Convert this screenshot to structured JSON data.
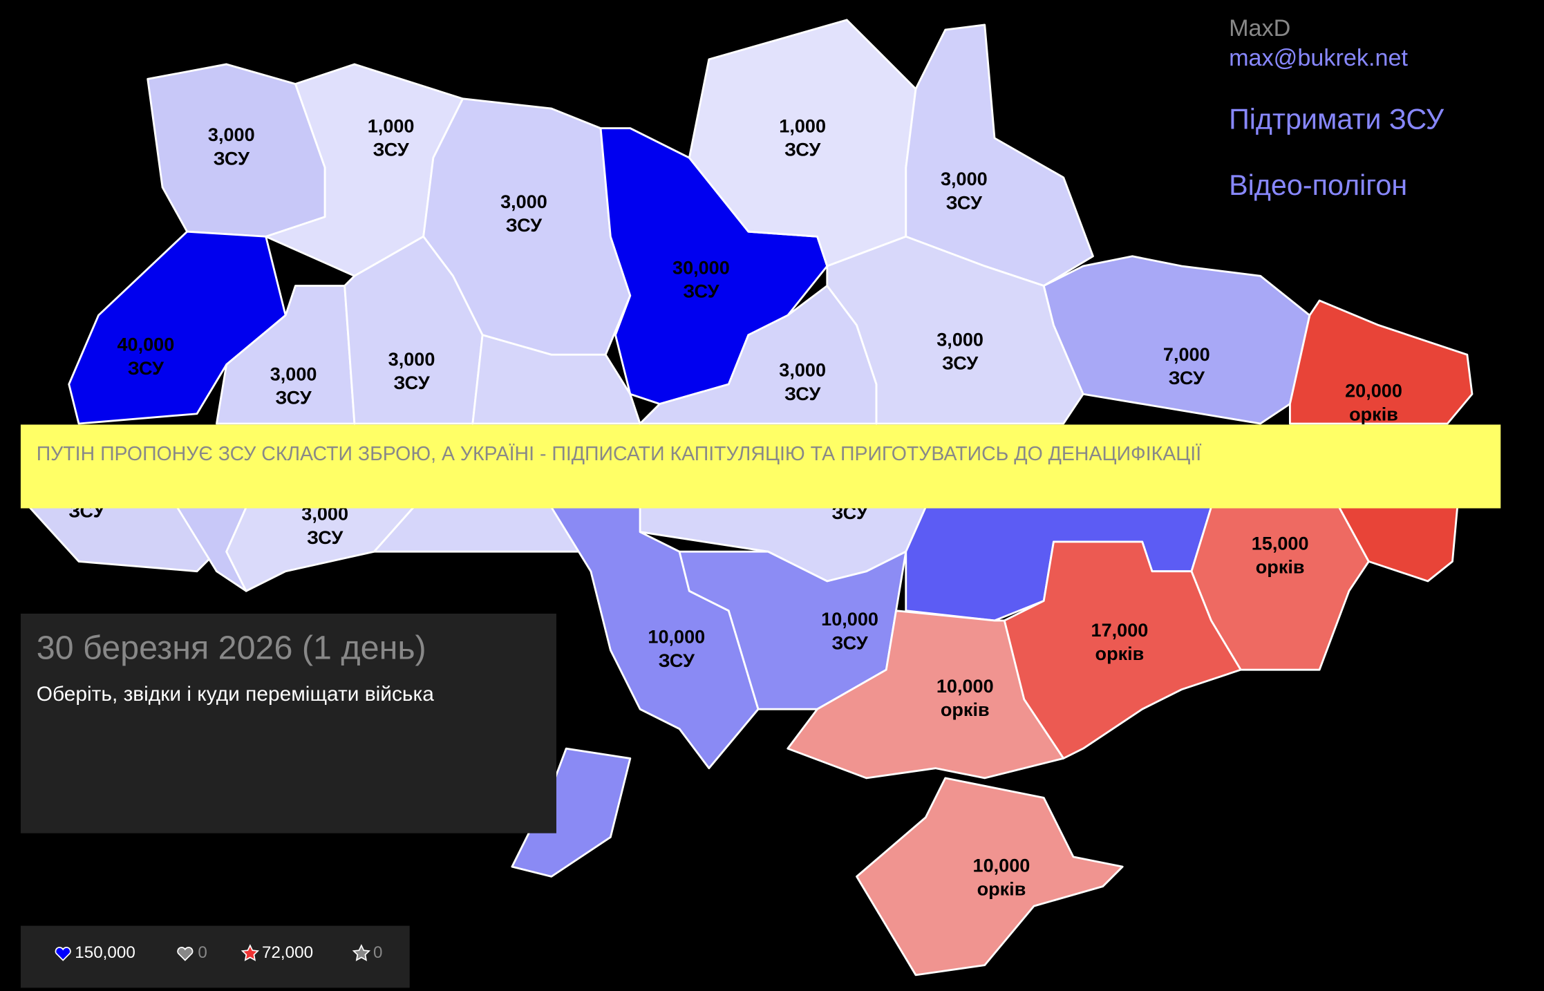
{
  "author": {
    "name": "MaxD",
    "email": "max@bukrek.net"
  },
  "links": [
    "Підтримати ЗСУ",
    "Відео-полігон"
  ],
  "banner": "ПУТІН ПРОПОНУЄ ЗСУ СКЛАСТИ ЗБРОЮ, А УКРАЇНІ - ПІДПИСАТИ КАПІТУЛЯЦІЮ ТА ПРИГОТУВАТИСЬ ДО ДЕНАЦИФІКАЦІЇ",
  "info": {
    "date": "30 березня 2026 (1 день)",
    "hint": "Оберіть, звідки і куди переміщати війська"
  },
  "stats": [
    "150,000",
    "0",
    "72,000",
    "0"
  ],
  "regions": [
    {
      "amount": "3,000",
      "side": "ЗСУ"
    },
    {
      "amount": "1,000",
      "side": "ЗСУ"
    },
    {
      "amount": "3,000",
      "side": "ЗСУ"
    },
    {
      "amount": "30,000",
      "side": "ЗСУ"
    },
    {
      "amount": "1,000",
      "side": "ЗСУ"
    },
    {
      "amount": "3,000",
      "side": "ЗСУ"
    },
    {
      "amount": "40,000",
      "side": "ЗСУ"
    },
    {
      "amount": "3,000",
      "side": "ЗСУ"
    },
    {
      "amount": "3,000",
      "side": "ЗСУ"
    },
    {
      "amount": "3,000",
      "side": "ЗСУ"
    },
    {
      "amount": "3,000",
      "side": "ЗСУ"
    },
    {
      "amount": "7,000",
      "side": "ЗСУ"
    },
    {
      "amount": "20,000",
      "side": "орків"
    },
    {
      "side": "ЗСУ"
    },
    {
      "amount": "3,000",
      "side": "ЗСУ"
    },
    {
      "side": "ЗСУ"
    },
    {
      "amount": "10,000",
      "side": "ЗСУ"
    },
    {
      "amount": "10,000",
      "side": "ЗСУ"
    },
    {
      "amount": "15,000",
      "side": "орків"
    },
    {
      "amount": "17,000",
      "side": "орків"
    },
    {
      "amount": "10,000",
      "side": "орків"
    },
    {
      "amount": "10,000",
      "side": "орків"
    }
  ]
}
